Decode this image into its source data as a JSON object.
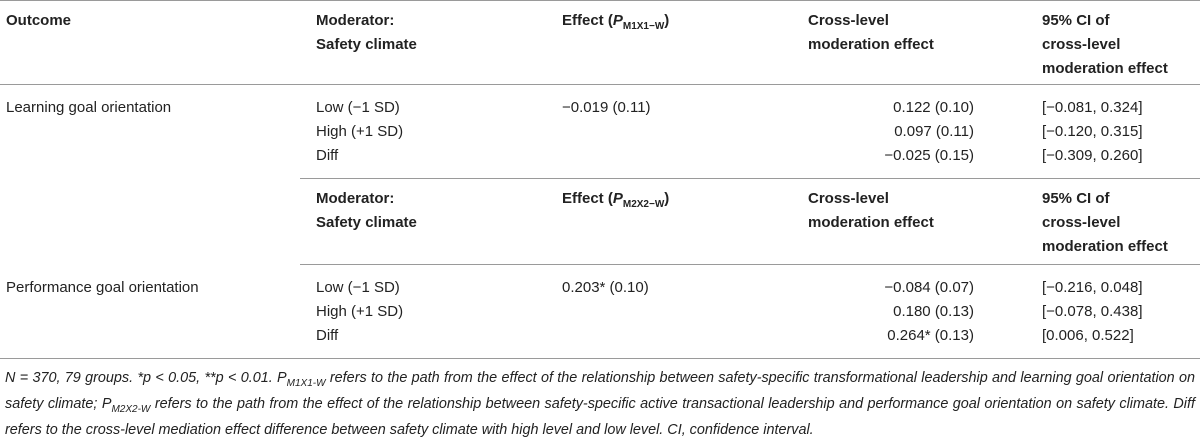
{
  "table": {
    "header_first": {
      "outcome": "Outcome",
      "moderator": [
        "Moderator:",
        "Safety climate"
      ],
      "effect_prefix": "Effect (",
      "effect_symbol": "P",
      "effect_sub": "M1X1−W",
      "effect_suffix": ")",
      "cross_level": [
        "Cross-level",
        "moderation effect"
      ],
      "ci": [
        "95% CI of",
        "cross-level",
        "moderation effect"
      ]
    },
    "header_second": {
      "moderator": [
        "Moderator:",
        "Safety climate"
      ],
      "effect_prefix": "Effect (",
      "effect_symbol": "P",
      "effect_sub": "M2X2−W",
      "effect_suffix": ")",
      "cross_level": [
        "Cross-level",
        "moderation effect"
      ],
      "ci": [
        "95% CI of",
        "cross-level",
        "moderation effect"
      ]
    },
    "group1": {
      "outcome": "Learning goal orientation",
      "rows": [
        {
          "moderator": "Low (−1 SD)",
          "effect": "−0.019 (0.11)",
          "cross": "0.122 (0.10)",
          "ci": "[−0.081, 0.324]"
        },
        {
          "moderator": "High (+1 SD)",
          "effect": "",
          "cross": "0.097 (0.11)",
          "ci": "[−0.120, 0.315]"
        },
        {
          "moderator": "Diff",
          "effect": "",
          "cross": "−0.025 (0.15)",
          "ci": "[−0.309, 0.260]"
        }
      ]
    },
    "group2": {
      "outcome": "Performance goal orientation",
      "rows": [
        {
          "moderator": "Low (−1 SD)",
          "effect": "0.203* (0.10)",
          "cross": "−0.084 (0.07)",
          "ci": "[−0.216, 0.048]"
        },
        {
          "moderator": "High (+1 SD)",
          "effect": "",
          "cross": "0.180 (0.13)",
          "ci": "[−0.078, 0.438]"
        },
        {
          "moderator": "Diff",
          "effect": "",
          "cross": "0.264* (0.13)",
          "ci": "[0.006, 0.522]"
        }
      ]
    }
  },
  "footnote": {
    "part1": "N = 370, 79 groups. *p < 0.05, **p < 0.01. P",
    "sub1": "M1X1-W",
    "part2": " refers to the path from the effect of the relationship between safety-specific transformational leadership and learning goal orientation on safety climate; P",
    "sub2": "M2X2-W",
    "part3": " refers to the path from the effect of the relationship between safety-specific active transactional leadership and performance goal orientation on safety climate. Diff refers to the cross-level mediation effect difference between safety climate with high level and low level. CI, confidence interval."
  }
}
